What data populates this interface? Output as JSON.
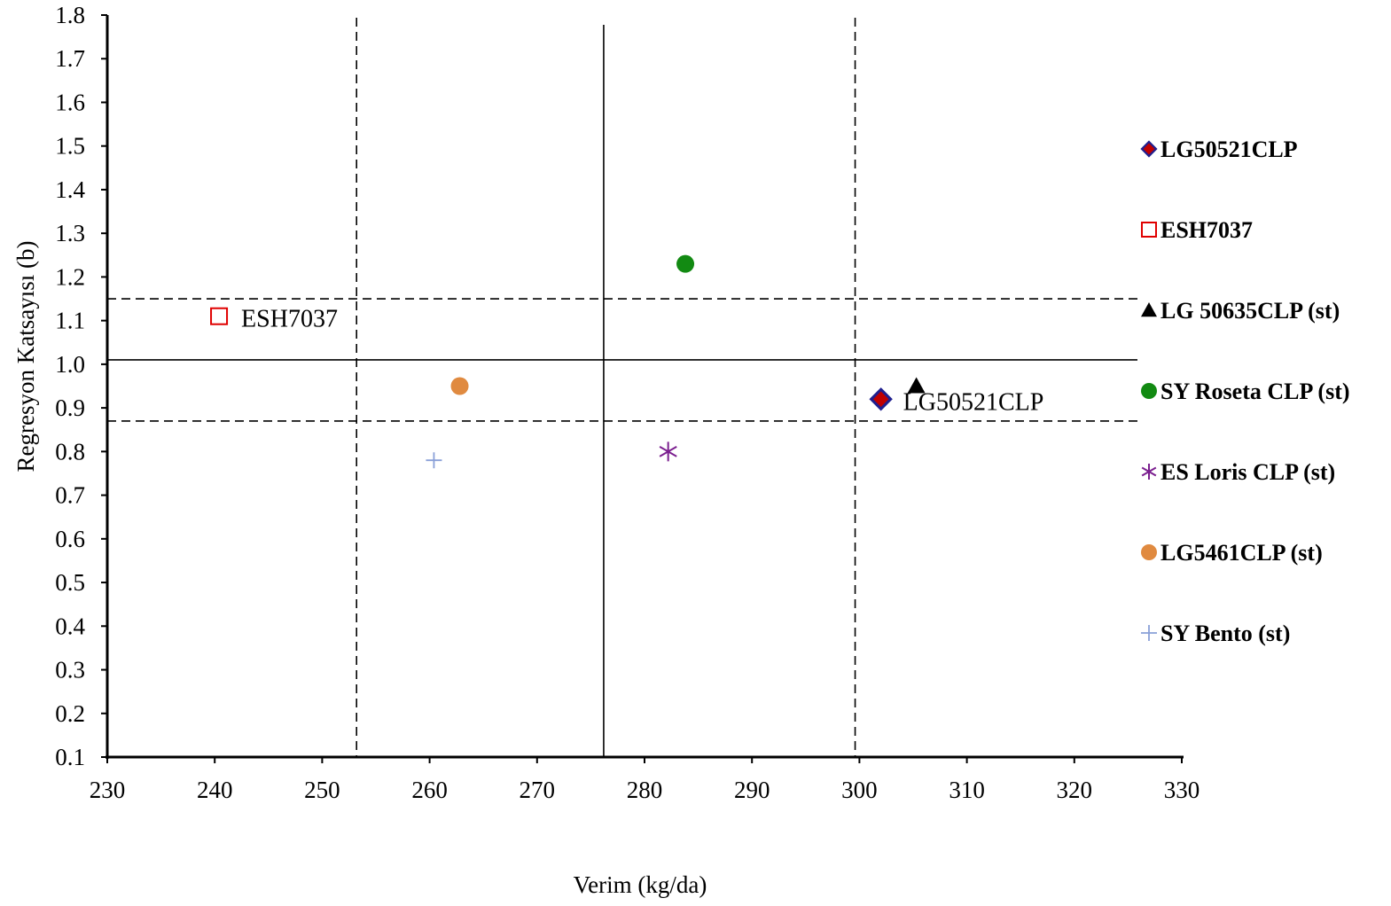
{
  "chart_data": {
    "type": "scatter",
    "title": "",
    "xlabel": "Verim (kg/da)",
    "ylabel": "Regresyon Katsayısı (b)",
    "xlim": [
      230,
      330
    ],
    "ylim": [
      0.1,
      1.8
    ],
    "x_ticks": [
      "230",
      "240",
      "250",
      "260",
      "270",
      "280",
      "290",
      "300",
      "310",
      "320",
      "330"
    ],
    "y_ticks": [
      "0.1",
      "0.2",
      "0.3",
      "0.4",
      "0.5",
      "0.6",
      "0.7",
      "0.8",
      "0.9",
      "1.0",
      "1.1",
      "1.2",
      "1.3",
      "1.4",
      "1.5",
      "1.6",
      "1.7",
      "1.8"
    ],
    "grid": false,
    "legend_position": "right",
    "reference_lines": {
      "vertical_solid": 276.2,
      "vertical_dashed": [
        253.2,
        299.6
      ],
      "horizontal_solid": 1.01,
      "horizontal_dashed": [
        1.15,
        0.87
      ]
    },
    "series": [
      {
        "name": "LG50521CLP",
        "marker": "diamond",
        "color": "#c00000",
        "edge_color": "#1f1f8f",
        "x": 302.0,
        "y": 0.92,
        "label": "LG50521CLP"
      },
      {
        "name": "ESH7037",
        "marker": "square-open",
        "color": "#e00000",
        "x": 240.4,
        "y": 1.11,
        "label": "ESH7037"
      },
      {
        "name": "LG 50635CLP (st)",
        "marker": "triangle",
        "color": "#000000",
        "x": 305.3,
        "y": 0.95
      },
      {
        "name": "SY Roseta CLP (st)",
        "marker": "circle",
        "color": "#128a12",
        "x": 283.8,
        "y": 1.23
      },
      {
        "name": "ES Loris CLP (st)",
        "marker": "asterisk",
        "color": "#7b1f8f",
        "x": 282.2,
        "y": 0.8
      },
      {
        "name": "LG5461CLP (st)",
        "marker": "circle",
        "color": "#e08a40",
        "x": 262.8,
        "y": 0.95
      },
      {
        "name": "SY Bento (st)",
        "marker": "plus",
        "color": "#8aa0d8",
        "x": 260.4,
        "y": 0.78
      }
    ]
  }
}
